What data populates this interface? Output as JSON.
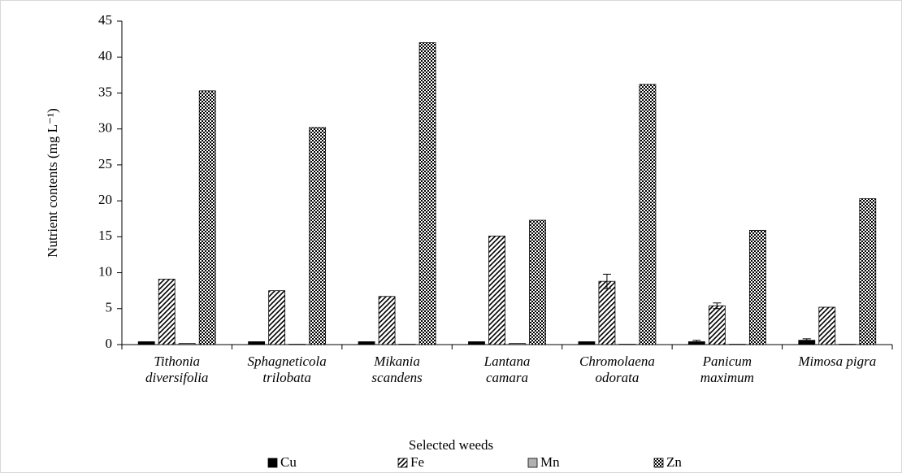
{
  "chart_data": {
    "type": "bar",
    "x_label": "Selected weeds",
    "y_label": "Nutrient contents (mg L⁻¹)",
    "categories": [
      [
        "Tithonia",
        "diversifolia"
      ],
      [
        "Sphagneticola",
        "trilobata"
      ],
      [
        "Mikania",
        "scandens"
      ],
      [
        "Lantana",
        "camara"
      ],
      [
        "Chromolaena",
        "odorata"
      ],
      [
        "Panicum",
        "maximum"
      ],
      [
        "Mimosa pigra"
      ]
    ],
    "series": [
      {
        "name": "Cu",
        "color": "#000000",
        "pattern": "solid",
        "values": [
          0.4,
          0.4,
          0.4,
          0.4,
          0.4,
          0.4,
          0.6
        ],
        "errors": [
          null,
          null,
          null,
          null,
          null,
          0.2,
          0.2
        ]
      },
      {
        "name": "Fe",
        "color": "#000000",
        "pattern": "hatch",
        "values": [
          9.1,
          7.5,
          6.7,
          15.1,
          8.8,
          5.4,
          5.2
        ],
        "errors": [
          null,
          null,
          null,
          null,
          1.0,
          0.4,
          null
        ]
      },
      {
        "name": "Mn",
        "color": "#b0b0b0",
        "pattern": "solid",
        "values": [
          0.15,
          0.05,
          0.05,
          0.15,
          0.05,
          0.05,
          0.05
        ],
        "errors": [
          null,
          null,
          null,
          null,
          null,
          null,
          null
        ]
      },
      {
        "name": "Zn",
        "color": "#000000",
        "pattern": "dots",
        "values": [
          35.3,
          30.2,
          42.0,
          17.3,
          36.2,
          15.9,
          20.3
        ],
        "errors": [
          null,
          null,
          null,
          null,
          null,
          null,
          null
        ]
      }
    ],
    "ylim": [
      0,
      45
    ],
    "yticks": [
      0,
      5,
      10,
      15,
      20,
      25,
      30,
      35,
      40,
      45
    ]
  }
}
